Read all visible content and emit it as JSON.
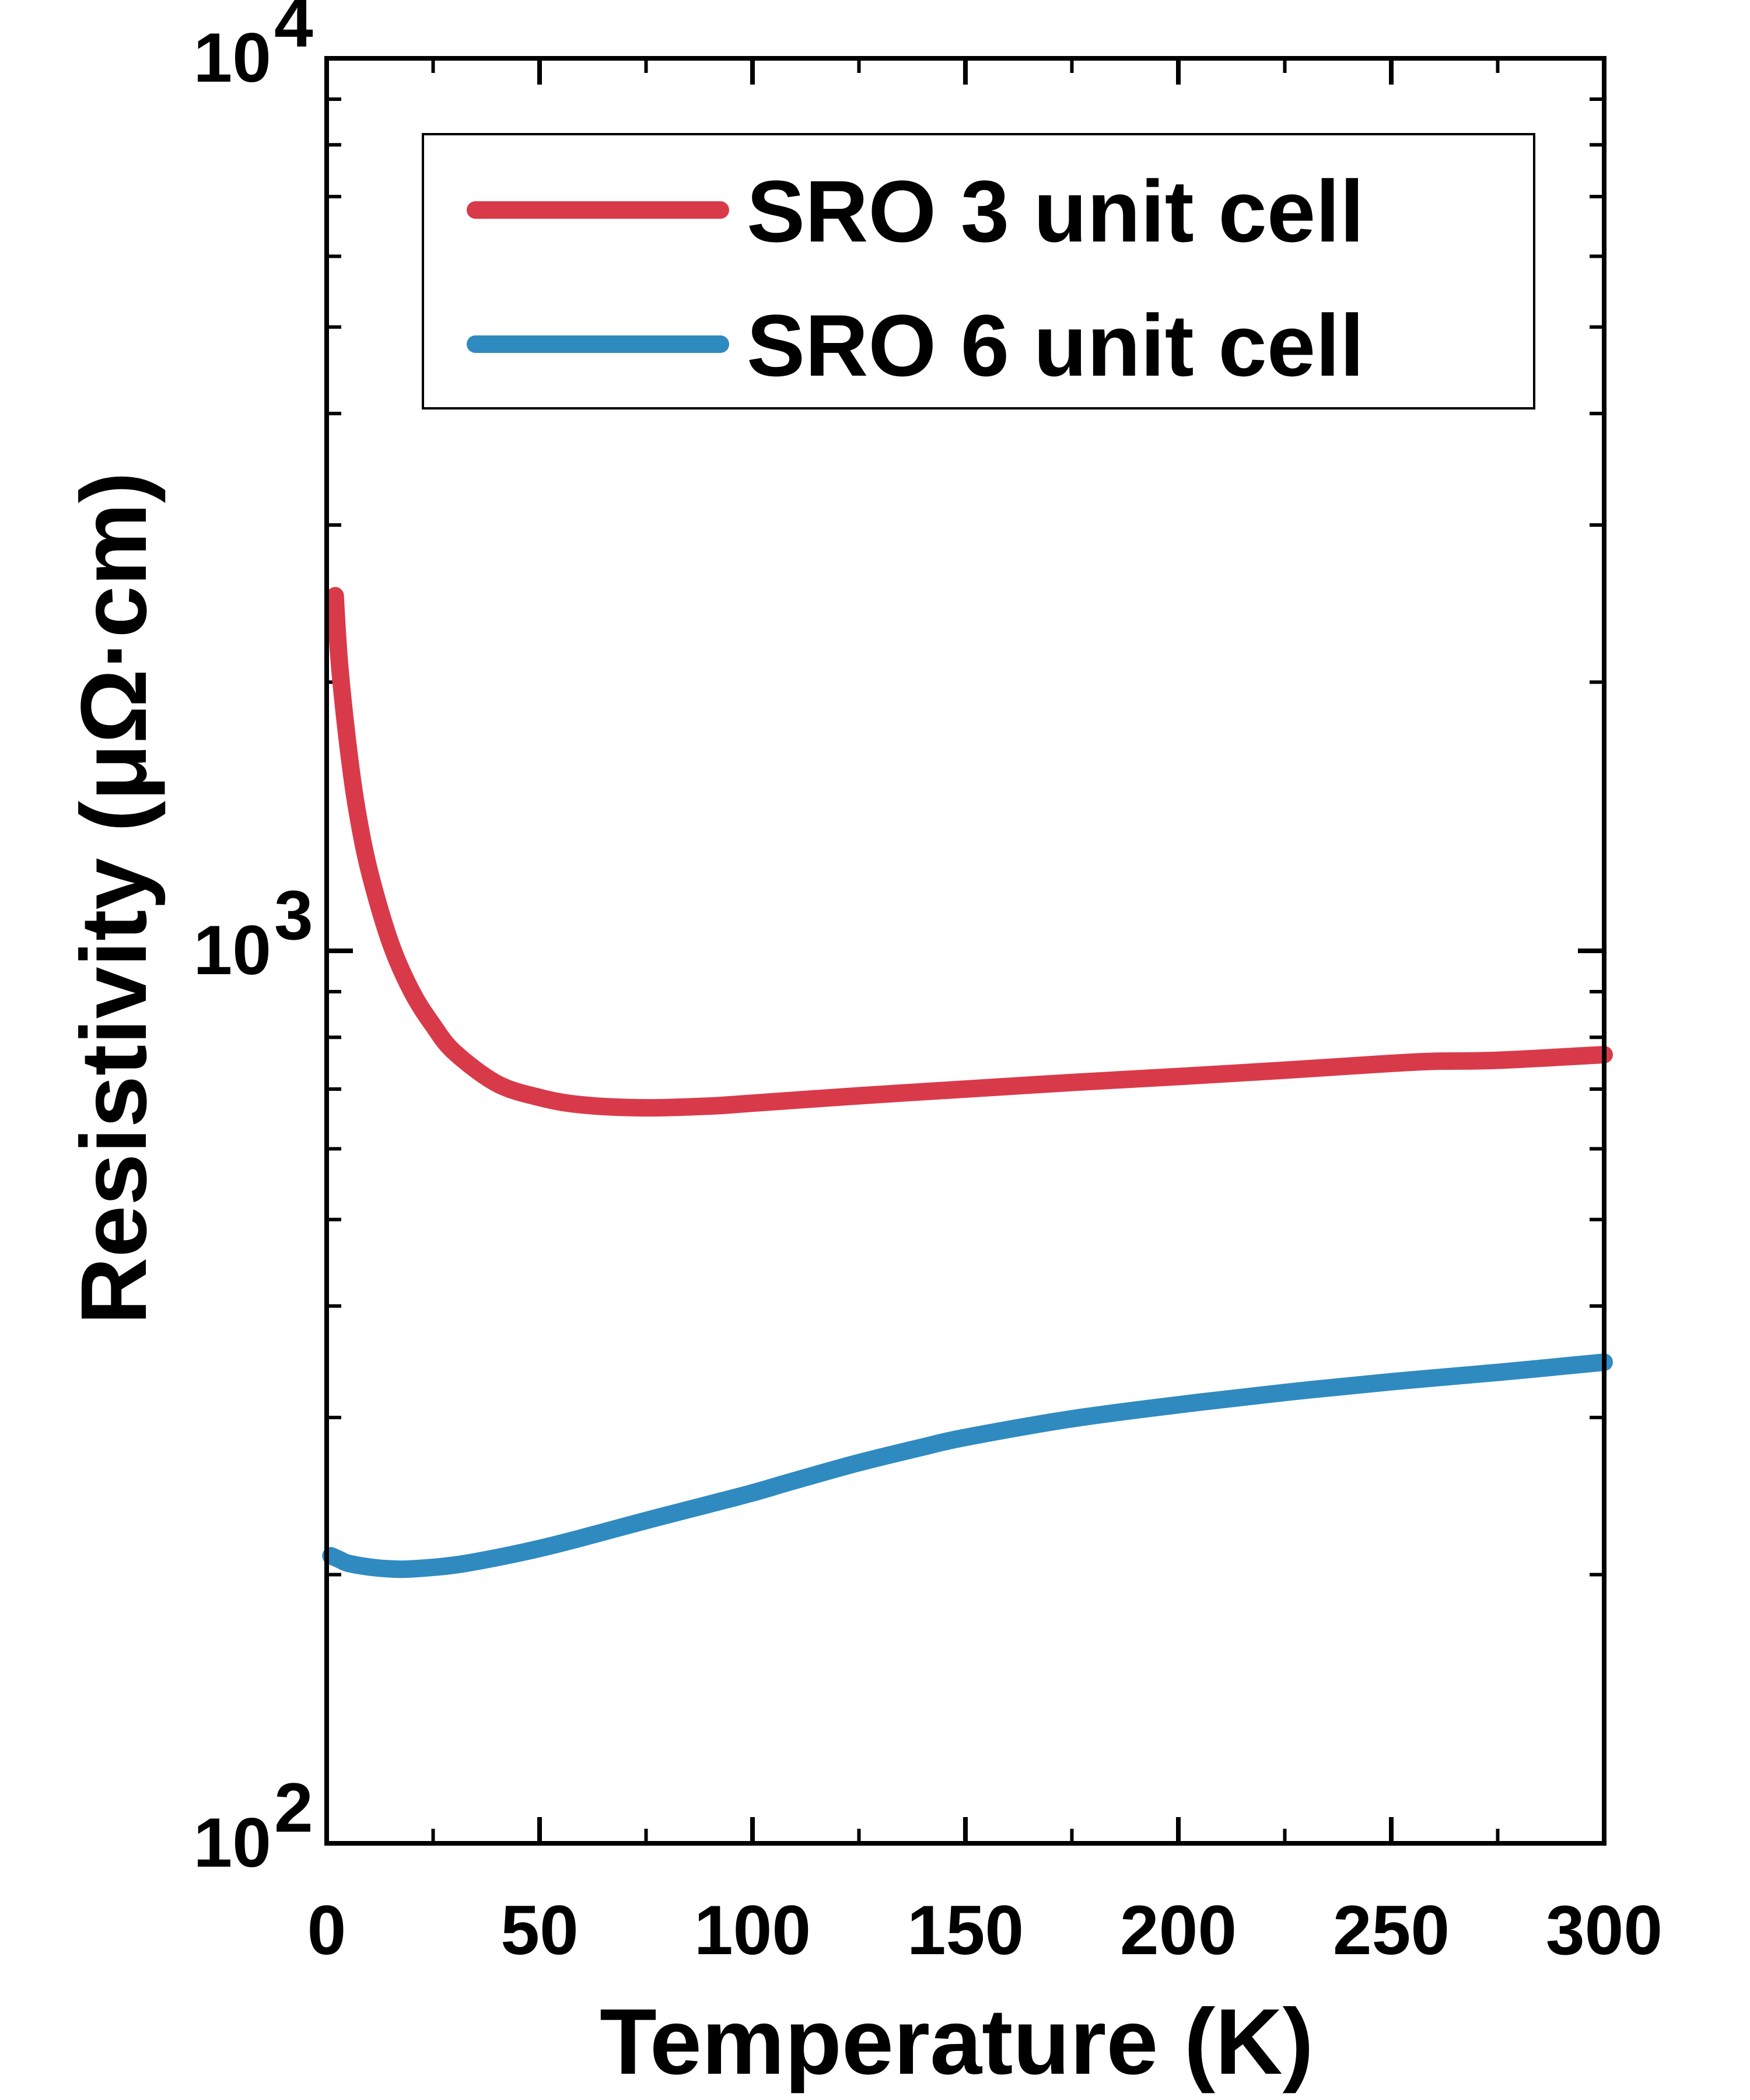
{
  "chart_data": {
    "type": "line",
    "xlabel": "Temperature (K)",
    "ylabel": "Resistivity (μΩ·cm)",
    "xlim": [
      0,
      300
    ],
    "ylim": [
      100,
      10000
    ],
    "yscale": "log",
    "xticks": [
      {
        "value": 0,
        "label": "0"
      },
      {
        "value": 50,
        "label": "50"
      },
      {
        "value": 100,
        "label": "100"
      },
      {
        "value": 150,
        "label": "150"
      },
      {
        "value": 200,
        "label": "200"
      },
      {
        "value": 250,
        "label": "250"
      },
      {
        "value": 300,
        "label": "300"
      }
    ],
    "yticks": [
      {
        "value": 100,
        "base": "10",
        "exp": "2"
      },
      {
        "value": 1000,
        "base": "10",
        "exp": "3"
      },
      {
        "value": 10000,
        "base": "10",
        "exp": "4"
      }
    ],
    "legend_position": "top-right",
    "series": [
      {
        "name": "SRO 3 unit cell",
        "color": "#d93a4a",
        "x": [
          2,
          3,
          5,
          7,
          10,
          15,
          20,
          25,
          30,
          40,
          50,
          60,
          75,
          90,
          100,
          125,
          150,
          175,
          200,
          225,
          250,
          260,
          275,
          300
        ],
        "y": [
          2500,
          2100,
          1700,
          1450,
          1230,
          1020,
          900,
          825,
          770,
          710,
          685,
          672,
          667,
          670,
          675,
          688,
          700,
          712,
          723,
          735,
          748,
          752,
          754,
          765
        ]
      },
      {
        "name": "SRO 6 unit cell",
        "color": "#2f8ac0",
        "x": [
          1,
          3,
          5,
          10,
          15,
          20,
          30,
          40,
          50,
          60,
          75,
          90,
          100,
          110,
          125,
          140,
          150,
          175,
          200,
          225,
          250,
          275,
          300
        ],
        "y": [
          210,
          208,
          206,
          204,
          203,
          203,
          205,
          209,
          214,
          220,
          230,
          240,
          247,
          255,
          267,
          278,
          285,
          299,
          310,
          320,
          329,
          337,
          346
        ]
      }
    ]
  }
}
